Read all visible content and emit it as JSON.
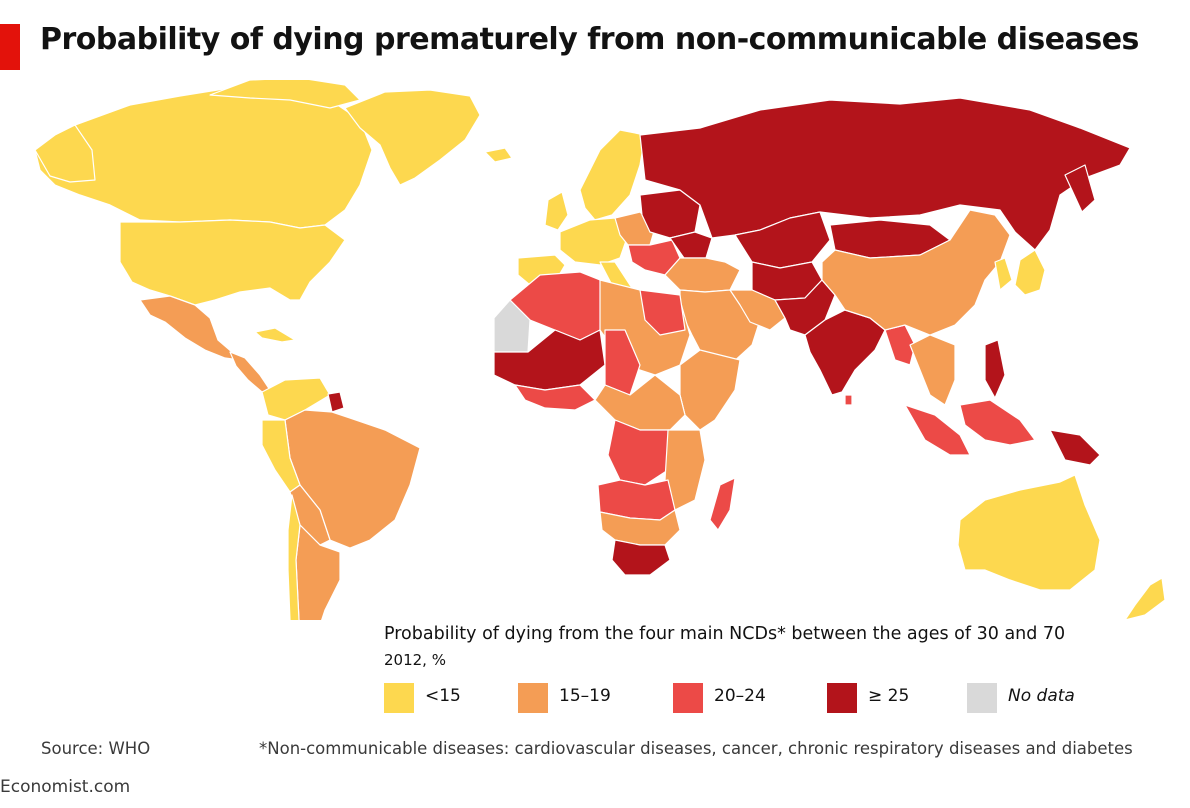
{
  "title": "Probability of dying prematurely from non-communicable diseases",
  "legend": {
    "title": "Probability of dying from the four main NCDs* between the ages of 30 and 70",
    "subtitle": "2012, %",
    "items": [
      {
        "label": "<15",
        "color": "#fdd84f"
      },
      {
        "label": "15–19",
        "color": "#f49d55"
      },
      {
        "label": "20–24",
        "color": "#ec4a47"
      },
      {
        "label": "≥ 25",
        "color": "#b3141b"
      },
      {
        "label": "No data",
        "color": "#d9d9d9"
      }
    ]
  },
  "source": "Source: WHO",
  "footnote": "*Non-communicable diseases: cardiovascular diseases, cancer, chronic respiratory diseases and diabetes",
  "brand": "Economist.com",
  "colors": {
    "accent": "#e3120b",
    "background": "#ffffff",
    "border": "#ffffff"
  }
}
